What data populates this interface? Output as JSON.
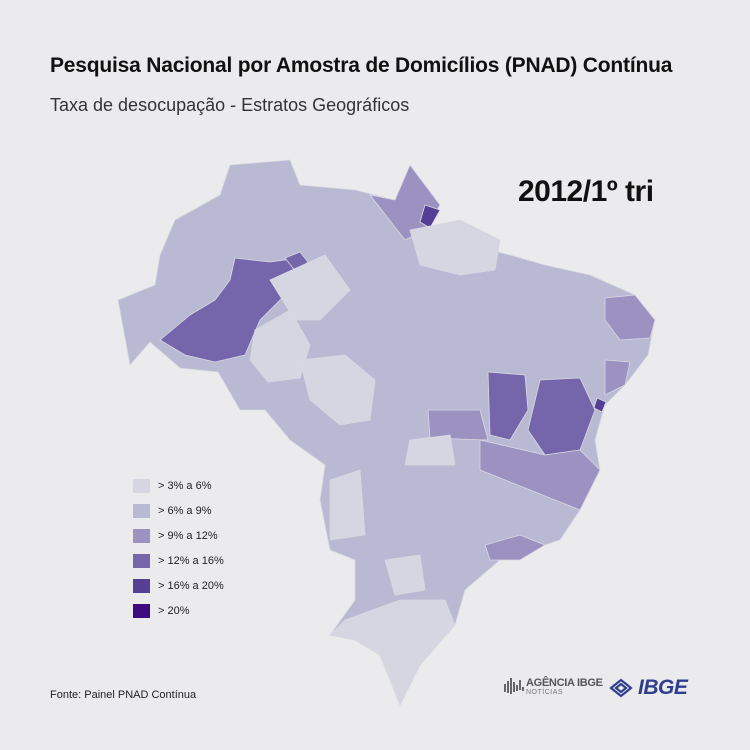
{
  "header": {
    "title": "Pesquisa Nacional por Amostra de Domicílios (PNAD) Contínua",
    "subtitle": "Taxa de desocupação - Estratos Geográficos",
    "period": "2012/1º tri"
  },
  "map": {
    "type": "choropleth",
    "country": "Brazil",
    "legend": {
      "placement": "bottom-left",
      "classes": [
        {
          "label": "> 3% a 6%",
          "color": "#d6d6e2"
        },
        {
          "label": "> 6% a 9%",
          "color": "#b9b9d3"
        },
        {
          "label": "> 9% a 12%",
          "color": "#9b92c1"
        },
        {
          "label": "> 12% a 16%",
          "color": "#7565aa"
        },
        {
          "label": "> 16% a 20%",
          "color": "#553f95"
        },
        {
          "label": "> 20%",
          "color": "#3e0b7f"
        }
      ]
    }
  },
  "footer": {
    "source": "Fonte: Painel PNAD Contínua",
    "agencia_main": "AGÊNCIA IBGE",
    "agencia_sub": "NOTÍCIAS",
    "ibge_logo": "IBGE"
  }
}
